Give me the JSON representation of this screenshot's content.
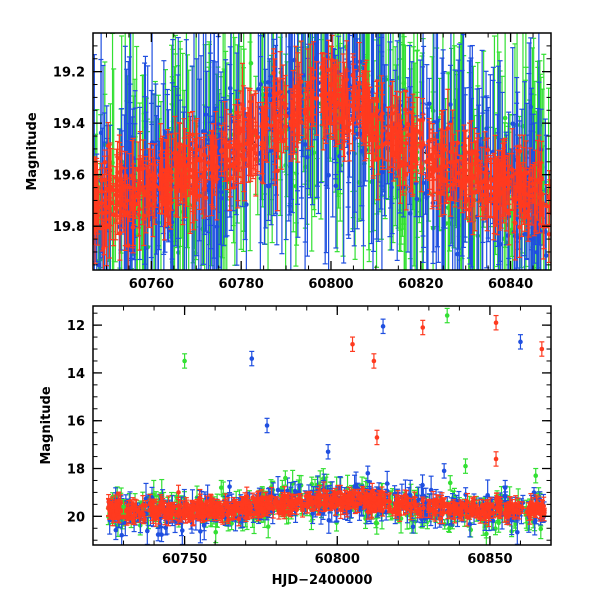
{
  "chart_data": [
    {
      "type": "scatter",
      "panel": "top",
      "xlabel": "",
      "ylabel": "Magnitude",
      "xlim": [
        60747,
        60849
      ],
      "ylim": [
        19.97,
        19.05
      ],
      "y_inverted": true,
      "xticks": [
        60760,
        60780,
        60800,
        60820,
        60840
      ],
      "yticks": [
        19.2,
        19.4,
        19.6,
        19.8
      ],
      "has_dashed_model_curve": true,
      "model_curve": {
        "x": [
          60747,
          60760,
          60775,
          60785,
          60795,
          60800,
          60805,
          60815,
          60825,
          60835,
          60849
        ],
        "y": [
          19.68,
          19.65,
          19.57,
          19.45,
          19.3,
          19.24,
          19.29,
          19.45,
          19.56,
          19.64,
          19.68
        ]
      },
      "series": [
        {
          "color": "#1f4fe0",
          "description_points": "dense light curve with large error bars"
        },
        {
          "color": "#33e033",
          "description_points": "dense light curve with large error bars"
        },
        {
          "color": "#ff3a1f",
          "description_points": "dense light curve with large error bars"
        }
      ],
      "trend": {
        "x": [
          60747,
          60755,
          60765,
          60775,
          60785,
          60792,
          60800,
          60808,
          60815,
          60825,
          60835,
          60849
        ],
        "y": [
          19.7,
          19.67,
          19.62,
          19.55,
          19.42,
          19.34,
          19.3,
          19.36,
          19.48,
          19.57,
          19.63,
          19.69
        ]
      }
    },
    {
      "type": "scatter",
      "panel": "bottom",
      "xlabel": "HJD−2400000",
      "ylabel": "Magnitude",
      "xlim": [
        60720,
        60870
      ],
      "ylim": [
        21.2,
        11.2
      ],
      "y_inverted": true,
      "xticks": [
        60750,
        60800,
        60850
      ],
      "yticks": [
        12,
        14,
        16,
        18,
        20
      ],
      "baseline_mag": 19.75,
      "outliers": [
        {
          "x": 60750,
          "y": 13.5,
          "color": "#33e033"
        },
        {
          "x": 60772,
          "y": 13.4,
          "color": "#1f4fe0"
        },
        {
          "x": 60777,
          "y": 16.2,
          "color": "#1f4fe0"
        },
        {
          "x": 60797,
          "y": 17.3,
          "color": "#1f4fe0"
        },
        {
          "x": 60805,
          "y": 12.8,
          "color": "#ff3a1f"
        },
        {
          "x": 60812,
          "y": 13.5,
          "color": "#ff3a1f"
        },
        {
          "x": 60813,
          "y": 16.7,
          "color": "#ff3a1f"
        },
        {
          "x": 60815,
          "y": 12.05,
          "color": "#1f4fe0"
        },
        {
          "x": 60828,
          "y": 12.1,
          "color": "#ff3a1f"
        },
        {
          "x": 60836,
          "y": 11.6,
          "color": "#33e033"
        },
        {
          "x": 60852,
          "y": 17.6,
          "color": "#ff3a1f"
        },
        {
          "x": 60852,
          "y": 11.9,
          "color": "#ff3a1f"
        },
        {
          "x": 60860,
          "y": 12.7,
          "color": "#1f4fe0"
        },
        {
          "x": 60867,
          "y": 13.0,
          "color": "#ff3a1f"
        },
        {
          "x": 60783,
          "y": 18.4,
          "color": "#33e033"
        },
        {
          "x": 60762,
          "y": 18.8,
          "color": "#33e033"
        },
        {
          "x": 60748,
          "y": 19.0,
          "color": "#ff3a1f"
        },
        {
          "x": 60730,
          "y": 19.6,
          "color": "#33e033"
        },
        {
          "x": 60837,
          "y": 18.6,
          "color": "#33e033"
        },
        {
          "x": 60835,
          "y": 18.1,
          "color": "#1f4fe0"
        },
        {
          "x": 60842,
          "y": 17.9,
          "color": "#33e033"
        },
        {
          "x": 60865,
          "y": 18.3,
          "color": "#33e033"
        },
        {
          "x": 60855,
          "y": 18.8,
          "color": "#1f4fe0"
        },
        {
          "x": 60810,
          "y": 18.2,
          "color": "#1f4fe0"
        }
      ]
    }
  ],
  "colors": {
    "blue": "#1f4fe0",
    "green": "#33e033",
    "red": "#ff3a1f"
  }
}
